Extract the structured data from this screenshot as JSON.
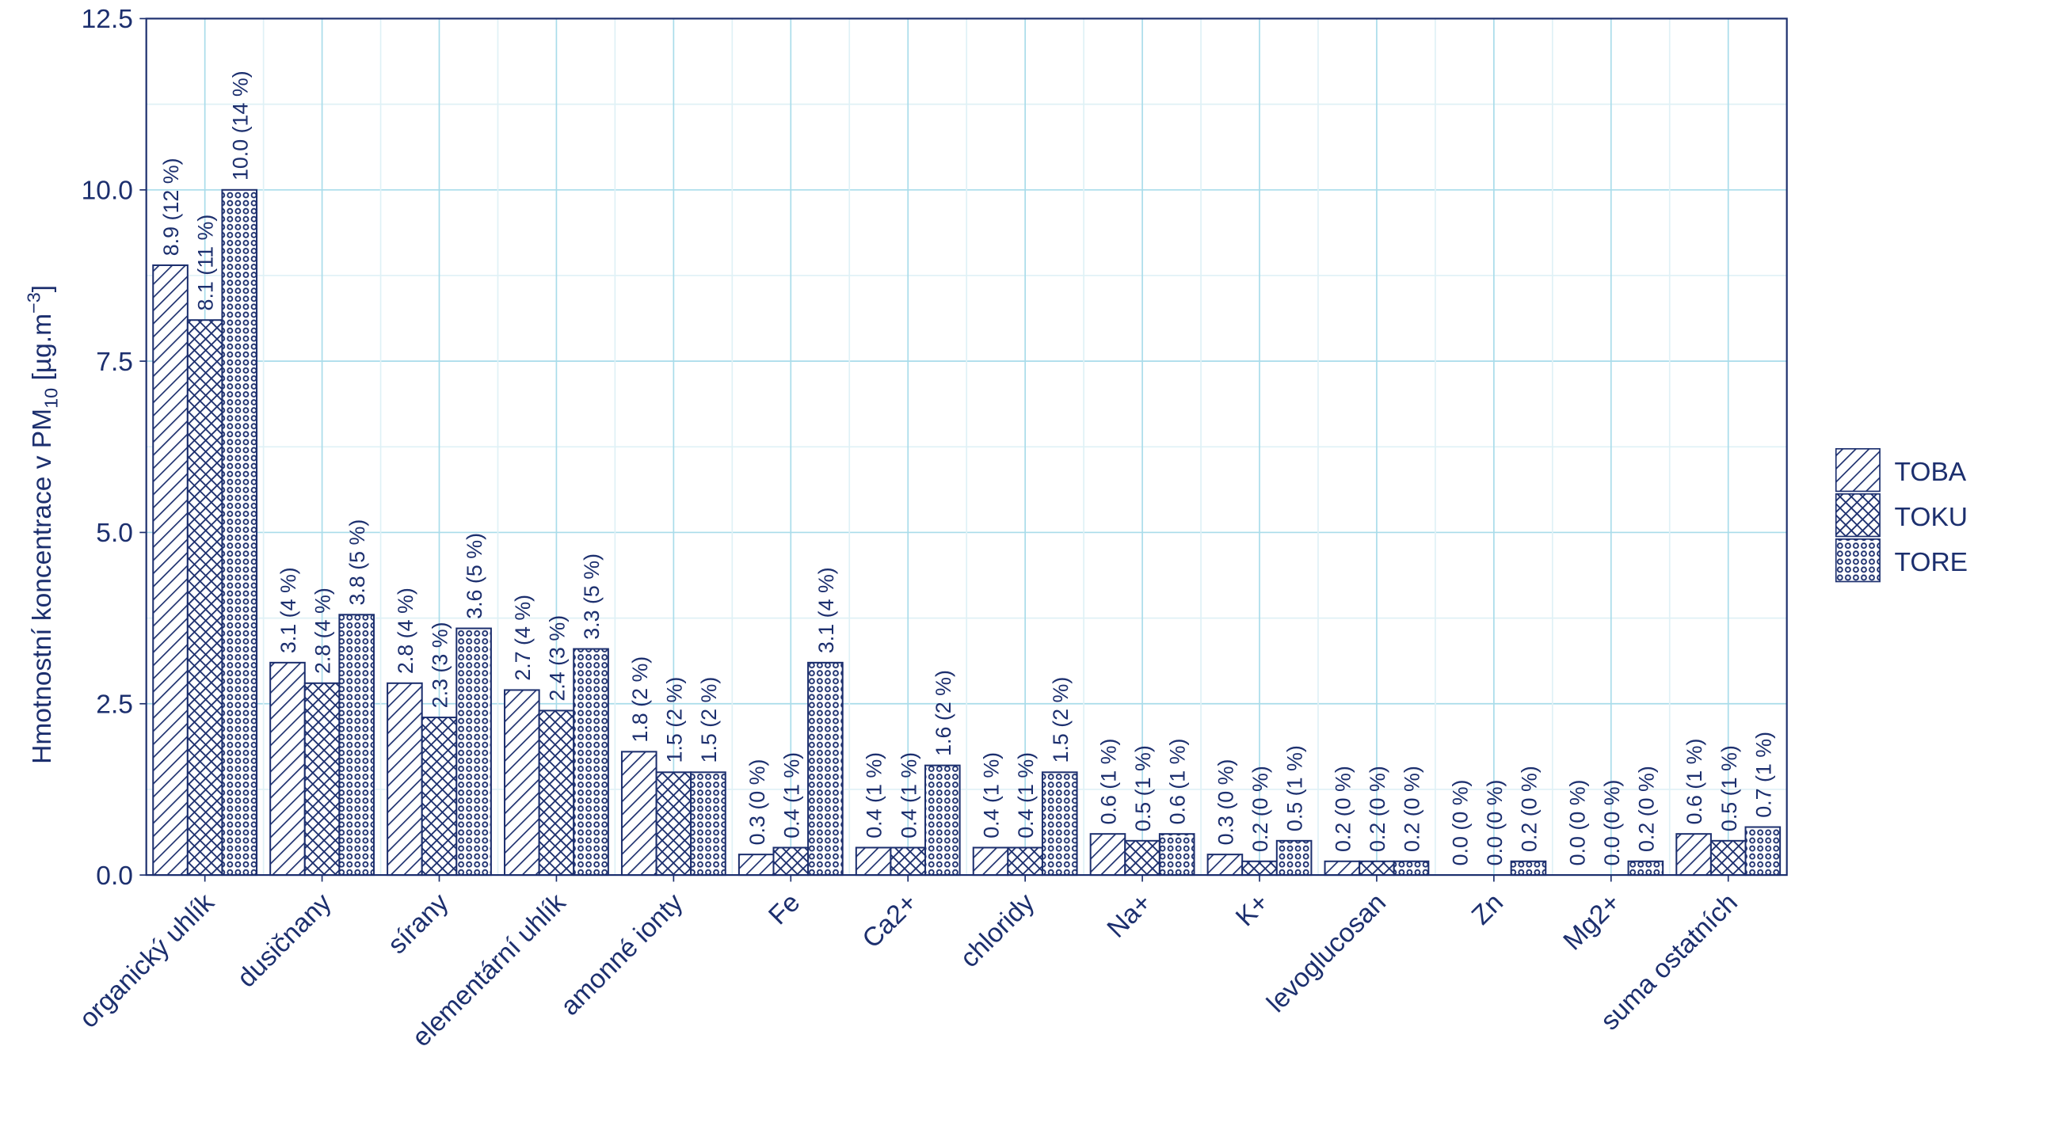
{
  "chart_data": {
    "type": "bar",
    "y_label": [
      "Hmotnostní koncentrace v  PM",
      "10",
      " [µg.m",
      "−3",
      "]"
    ],
    "categories": [
      "organický uhlík",
      "dusičnany",
      "sírany",
      "elementární uhlík",
      "amonné ionty",
      "Fe",
      "Ca2+",
      "chloridy",
      "Na+",
      "K+",
      "levoglucosan",
      "Zn",
      "Mg2+",
      "suma ostatních"
    ],
    "series": [
      {
        "name": "TOBA",
        "color": "#1c2f6e",
        "pattern": "hatch",
        "values": [
          8.9,
          3.1,
          2.8,
          2.7,
          1.8,
          0.3,
          0.4,
          0.4,
          0.6,
          0.3,
          0.2,
          0.0,
          0.0,
          0.6
        ],
        "value_labels": [
          "8.9 (12 %)",
          "3.1 (4 %)",
          "2.8 (4 %)",
          "2.7 (4 %)",
          "1.8 (2 %)",
          "0.3 (0 %)",
          "0.4 (1 %)",
          "0.4 (1 %)",
          "0.6 (1 %)",
          "0.3 (0 %)",
          "0.2 (0 %)",
          "0.0 (0 %)",
          "0.0 (0 %)",
          "0.6 (1 %)"
        ]
      },
      {
        "name": "TOKU",
        "color": "#1c2f6e",
        "pattern": "crosshatch",
        "values": [
          8.1,
          2.8,
          2.3,
          2.4,
          1.5,
          0.4,
          0.4,
          0.4,
          0.5,
          0.2,
          0.2,
          0.0,
          0.0,
          0.5
        ],
        "value_labels": [
          "8.1 (11 %)",
          "2.8 (4 %)",
          "2.3 (3 %)",
          "2.4 (3 %)",
          "1.5 (2 %)",
          "0.4 (1 %)",
          "0.4 (1 %)",
          "0.4 (1 %)",
          "0.5 (1 %)",
          "0.2 (0 %)",
          "0.2 (0 %)",
          "0.0 (0 %)",
          "0.0 (0 %)",
          "0.5 (1 %)"
        ]
      },
      {
        "name": "TORE",
        "color": "#1c2f6e",
        "pattern": "dots",
        "values": [
          10.0,
          3.8,
          3.6,
          3.3,
          1.5,
          3.1,
          1.6,
          1.5,
          0.6,
          0.5,
          0.2,
          0.2,
          0.2,
          0.7
        ],
        "value_labels": [
          "10.0 (14 %)",
          "3.8 (5 %)",
          "3.6 (5 %)",
          "3.3 (5 %)",
          "1.5 (2 %)",
          "3.1 (4 %)",
          "1.6 (2 %)",
          "1.5 (2 %)",
          "0.6 (1 %)",
          "0.5 (1 %)",
          "0.2 (0 %)",
          "0.2 (0 %)",
          "0.2 (0 %)",
          "0.7 (1 %)"
        ]
      }
    ],
    "ylim": [
      0,
      12.5
    ],
    "yticks": [
      {
        "value": 0,
        "label": "0.0"
      },
      2.5,
      {
        "value": 5,
        "label": "5.0"
      },
      7.5,
      {
        "value": 10,
        "label": "10.0"
      },
      12.5
    ],
    "grid": true,
    "minor_grid": true,
    "legend": "right"
  }
}
